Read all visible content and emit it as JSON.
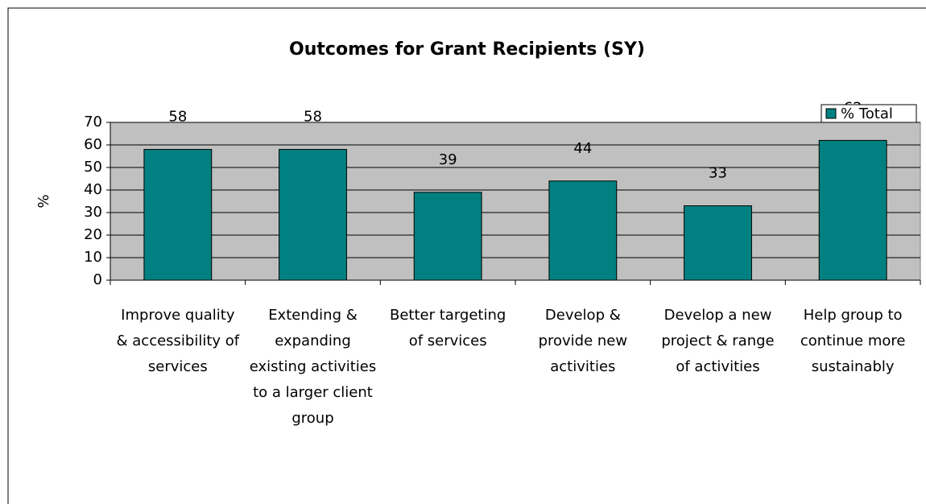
{
  "chart_data": {
    "type": "bar",
    "title": "Outcomes for Grant Recipients (SY)",
    "y_label": "%",
    "categories": [
      "Improve quality & accessibility of services",
      "Extending & expanding existing activities to a larger client group",
      "Better targeting of services",
      "Develop & provide new activities",
      "Develop a new project & range of activities",
      "Help group to continue more sustainably"
    ],
    "series": [
      {
        "name": "% Total",
        "color": "#008080",
        "values": [
          58,
          58,
          39,
          44,
          33,
          62
        ]
      }
    ],
    "ylim": [
      0,
      70
    ],
    "yticks": [
      0,
      10,
      20,
      30,
      40,
      50,
      60,
      70
    ],
    "grid": true,
    "legend": "top-right"
  }
}
